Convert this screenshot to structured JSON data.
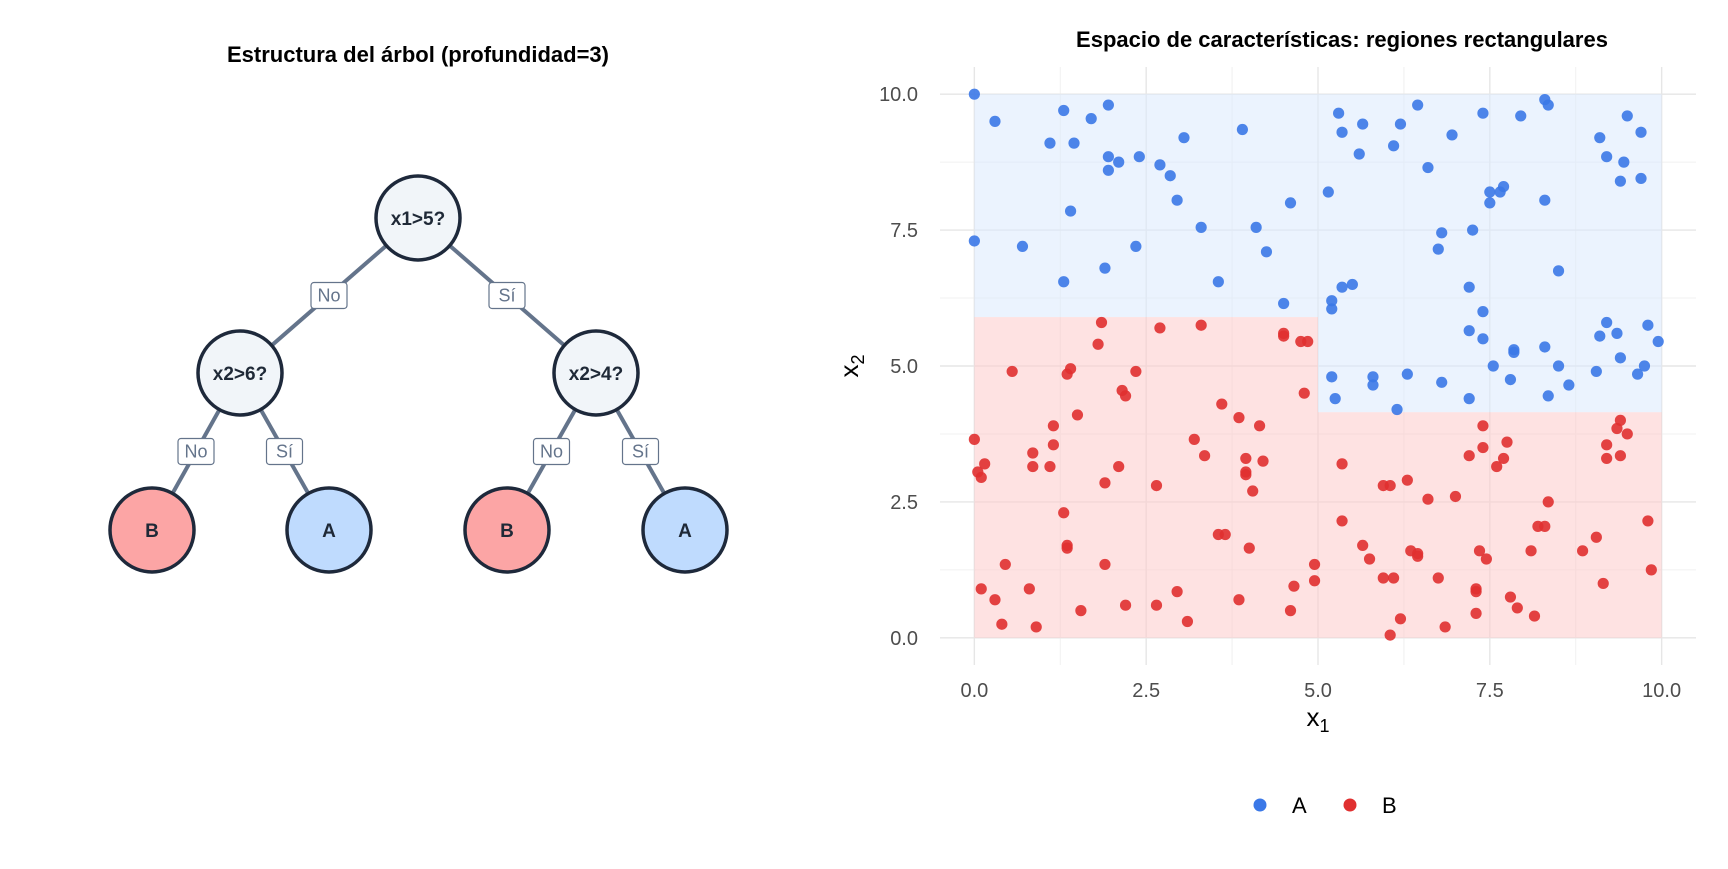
{
  "tree": {
    "title": "Estructura del árbol (profundidad=3)",
    "nodes": [
      {
        "id": "root",
        "label": "x1>5?",
        "type": "split"
      },
      {
        "id": "left",
        "label": "x2>6?",
        "type": "split"
      },
      {
        "id": "right",
        "label": "x2>4?",
        "type": "split"
      },
      {
        "id": "ll",
        "label": "B",
        "type": "leaf-B"
      },
      {
        "id": "lr",
        "label": "A",
        "type": "leaf-A"
      },
      {
        "id": "rl",
        "label": "B",
        "type": "leaf-B"
      },
      {
        "id": "rr",
        "label": "A",
        "type": "leaf-A"
      }
    ],
    "edges": [
      {
        "from": "root",
        "to": "left",
        "label": "No"
      },
      {
        "from": "root",
        "to": "right",
        "label": "Sí"
      },
      {
        "from": "left",
        "to": "ll",
        "label": "No"
      },
      {
        "from": "left",
        "to": "lr",
        "label": "Sí"
      },
      {
        "from": "right",
        "to": "rl",
        "label": "No"
      },
      {
        "from": "right",
        "to": "rr",
        "label": "Sí"
      }
    ],
    "colors": {
      "split_fill": "#f1f5f9",
      "leaf_A_fill": "#bfdbfe",
      "leaf_B_fill": "#fca5a5",
      "stroke": "#1e293b",
      "edge": "#64748b"
    }
  },
  "chart_data": {
    "type": "scatter",
    "title": "Espacio de características: regiones rectangulares",
    "xlabel": "x",
    "xlabel_sub": "1",
    "ylabel": "x",
    "ylabel_sub": "2",
    "xlim": [
      -0.5,
      10.5
    ],
    "ylim": [
      -0.5,
      10.5
    ],
    "xticks": [
      0,
      2.5,
      5,
      7.5,
      10
    ],
    "xtick_labels": [
      "0.0",
      "2.5",
      "5.0",
      "7.5",
      "10.0"
    ],
    "yticks": [
      0,
      2.5,
      5,
      7.5,
      10
    ],
    "ytick_labels": [
      "0.0",
      "2.5",
      "5.0",
      "7.5",
      "10.0"
    ],
    "grid": true,
    "legend_position": "bottom",
    "regions": [
      {
        "class": "A",
        "x": [
          0,
          5
        ],
        "y": [
          5.9,
          10
        ],
        "color": "#dbeafe"
      },
      {
        "class": "B",
        "x": [
          0,
          5
        ],
        "y": [
          0,
          5.9
        ],
        "color": "#fecaca"
      },
      {
        "class": "A",
        "x": [
          5,
          10
        ],
        "y": [
          4.15,
          10
        ],
        "color": "#dbeafe"
      },
      {
        "class": "B",
        "x": [
          5,
          10
        ],
        "y": [
          0,
          4.15
        ],
        "color": "#fecaca"
      }
    ],
    "series": [
      {
        "name": "A",
        "color": "#3b78e7",
        "points": [
          [
            0.0,
            10.0
          ],
          [
            0.3,
            9.5
          ],
          [
            0.0,
            7.3
          ],
          [
            0.7,
            7.2
          ],
          [
            1.1,
            9.1
          ],
          [
            1.3,
            9.7
          ],
          [
            1.45,
            9.1
          ],
          [
            1.4,
            7.85
          ],
          [
            1.3,
            6.55
          ],
          [
            1.7,
            9.55
          ],
          [
            1.95,
            9.8
          ],
          [
            1.95,
            8.85
          ],
          [
            1.95,
            8.6
          ],
          [
            2.1,
            8.75
          ],
          [
            2.4,
            8.85
          ],
          [
            1.9,
            6.8
          ],
          [
            2.35,
            7.2
          ],
          [
            2.7,
            8.7
          ],
          [
            2.85,
            8.5
          ],
          [
            2.95,
            8.05
          ],
          [
            3.05,
            9.2
          ],
          [
            3.3,
            7.55
          ],
          [
            3.55,
            6.55
          ],
          [
            3.9,
            9.35
          ],
          [
            4.1,
            7.55
          ],
          [
            4.25,
            7.1
          ],
          [
            4.5,
            6.15
          ],
          [
            4.6,
            8.0
          ],
          [
            5.2,
            6.2
          ],
          [
            5.2,
            6.05
          ],
          [
            5.3,
            9.65
          ],
          [
            5.35,
            9.3
          ],
          [
            5.35,
            6.45
          ],
          [
            5.5,
            6.5
          ],
          [
            5.6,
            8.9
          ],
          [
            5.65,
            9.45
          ],
          [
            6.1,
            9.05
          ],
          [
            6.2,
            9.45
          ],
          [
            6.45,
            9.8
          ],
          [
            6.6,
            8.65
          ],
          [
            6.75,
            7.15
          ],
          [
            6.8,
            7.45
          ],
          [
            6.95,
            9.25
          ],
          [
            7.2,
            6.45
          ],
          [
            7.25,
            7.5
          ],
          [
            7.4,
            9.65
          ],
          [
            7.5,
            8.2
          ],
          [
            7.5,
            8.0
          ],
          [
            7.65,
            8.2
          ],
          [
            7.7,
            8.3
          ],
          [
            7.95,
            9.6
          ],
          [
            8.3,
            9.9
          ],
          [
            8.35,
            9.8
          ],
          [
            8.3,
            8.05
          ],
          [
            8.5,
            6.75
          ],
          [
            9.1,
            9.2
          ],
          [
            9.2,
            8.85
          ],
          [
            9.45,
            8.75
          ],
          [
            9.5,
            9.6
          ],
          [
            9.7,
            9.3
          ],
          [
            9.4,
            8.4
          ],
          [
            9.7,
            8.45
          ],
          [
            5.15,
            8.2
          ],
          [
            5.2,
            4.8
          ],
          [
            5.25,
            4.4
          ],
          [
            5.8,
            4.8
          ],
          [
            5.8,
            4.65
          ],
          [
            6.15,
            4.2
          ],
          [
            6.3,
            4.85
          ],
          [
            6.8,
            4.7
          ],
          [
            7.2,
            4.4
          ],
          [
            7.2,
            5.65
          ],
          [
            7.4,
            6.0
          ],
          [
            7.4,
            5.5
          ],
          [
            7.55,
            5.0
          ],
          [
            7.85,
            5.3
          ],
          [
            7.85,
            5.25
          ],
          [
            7.8,
            4.75
          ],
          [
            8.3,
            5.35
          ],
          [
            8.35,
            4.45
          ],
          [
            8.5,
            5.0
          ],
          [
            8.65,
            4.65
          ],
          [
            9.05,
            4.9
          ],
          [
            9.1,
            5.55
          ],
          [
            9.2,
            5.8
          ],
          [
            9.35,
            5.6
          ],
          [
            9.4,
            5.15
          ],
          [
            9.65,
            4.85
          ],
          [
            9.75,
            5.0
          ],
          [
            9.8,
            5.75
          ],
          [
            9.95,
            5.45
          ]
        ]
      },
      {
        "name": "B",
        "color": "#e03030",
        "points": [
          [
            0.0,
            3.65
          ],
          [
            0.05,
            3.05
          ],
          [
            0.15,
            3.2
          ],
          [
            0.1,
            2.95
          ],
          [
            0.1,
            0.9
          ],
          [
            0.3,
            0.7
          ],
          [
            0.45,
            1.35
          ],
          [
            0.55,
            4.9
          ],
          [
            0.8,
            0.9
          ],
          [
            0.85,
            3.4
          ],
          [
            0.85,
            3.15
          ],
          [
            0.9,
            0.2
          ],
          [
            0.4,
            0.25
          ],
          [
            1.15,
            3.9
          ],
          [
            1.15,
            3.55
          ],
          [
            1.1,
            3.15
          ],
          [
            1.3,
            2.3
          ],
          [
            1.35,
            1.65
          ],
          [
            1.35,
            1.7
          ],
          [
            1.35,
            4.85
          ],
          [
            1.4,
            4.95
          ],
          [
            1.5,
            4.1
          ],
          [
            1.55,
            0.5
          ],
          [
            1.8,
            5.4
          ],
          [
            1.85,
            5.8
          ],
          [
            1.9,
            2.85
          ],
          [
            1.9,
            1.35
          ],
          [
            2.1,
            3.15
          ],
          [
            2.15,
            4.55
          ],
          [
            2.2,
            4.45
          ],
          [
            2.2,
            0.6
          ],
          [
            2.35,
            4.9
          ],
          [
            2.65,
            0.6
          ],
          [
            2.65,
            2.8
          ],
          [
            2.7,
            5.7
          ],
          [
            2.95,
            0.85
          ],
          [
            3.1,
            0.3
          ],
          [
            3.2,
            3.65
          ],
          [
            3.3,
            5.75
          ],
          [
            3.35,
            3.35
          ],
          [
            3.55,
            1.9
          ],
          [
            3.6,
            4.3
          ],
          [
            3.65,
            1.9
          ],
          [
            3.85,
            4.05
          ],
          [
            3.85,
            0.7
          ],
          [
            3.95,
            3.05
          ],
          [
            3.95,
            3.0
          ],
          [
            3.95,
            3.3
          ],
          [
            4.0,
            1.65
          ],
          [
            4.05,
            2.7
          ],
          [
            4.15,
            3.9
          ],
          [
            4.2,
            3.25
          ],
          [
            4.5,
            5.55
          ],
          [
            4.5,
            5.6
          ],
          [
            4.6,
            0.5
          ],
          [
            4.65,
            0.95
          ],
          [
            4.75,
            5.45
          ],
          [
            4.8,
            4.5
          ],
          [
            4.85,
            5.45
          ],
          [
            4.95,
            1.35
          ],
          [
            4.95,
            1.05
          ],
          [
            5.35,
            3.2
          ],
          [
            5.35,
            2.15
          ],
          [
            5.65,
            1.7
          ],
          [
            5.75,
            1.45
          ],
          [
            5.95,
            2.8
          ],
          [
            5.95,
            1.1
          ],
          [
            6.05,
            2.8
          ],
          [
            6.05,
            0.05
          ],
          [
            6.1,
            1.1
          ],
          [
            6.2,
            0.35
          ],
          [
            6.3,
            2.9
          ],
          [
            6.35,
            1.6
          ],
          [
            6.45,
            1.55
          ],
          [
            6.45,
            1.5
          ],
          [
            6.6,
            2.55
          ],
          [
            6.75,
            1.1
          ],
          [
            6.85,
            0.2
          ],
          [
            7.0,
            2.6
          ],
          [
            7.2,
            3.35
          ],
          [
            7.3,
            0.9
          ],
          [
            7.3,
            0.85
          ],
          [
            7.3,
            0.45
          ],
          [
            7.35,
            1.6
          ],
          [
            7.4,
            3.9
          ],
          [
            7.4,
            3.5
          ],
          [
            7.45,
            1.45
          ],
          [
            7.6,
            3.15
          ],
          [
            7.7,
            3.3
          ],
          [
            7.75,
            3.6
          ],
          [
            7.8,
            0.75
          ],
          [
            7.9,
            0.55
          ],
          [
            8.1,
            1.6
          ],
          [
            8.15,
            0.4
          ],
          [
            8.2,
            2.05
          ],
          [
            8.3,
            2.05
          ],
          [
            8.35,
            2.5
          ],
          [
            8.85,
            1.6
          ],
          [
            9.05,
            1.85
          ],
          [
            9.15,
            1.0
          ],
          [
            9.2,
            3.55
          ],
          [
            9.2,
            3.3
          ],
          [
            9.35,
            3.85
          ],
          [
            9.4,
            3.35
          ],
          [
            9.4,
            4.0
          ],
          [
            9.5,
            3.75
          ],
          [
            9.8,
            2.15
          ],
          [
            9.85,
            1.25
          ]
        ]
      }
    ]
  }
}
